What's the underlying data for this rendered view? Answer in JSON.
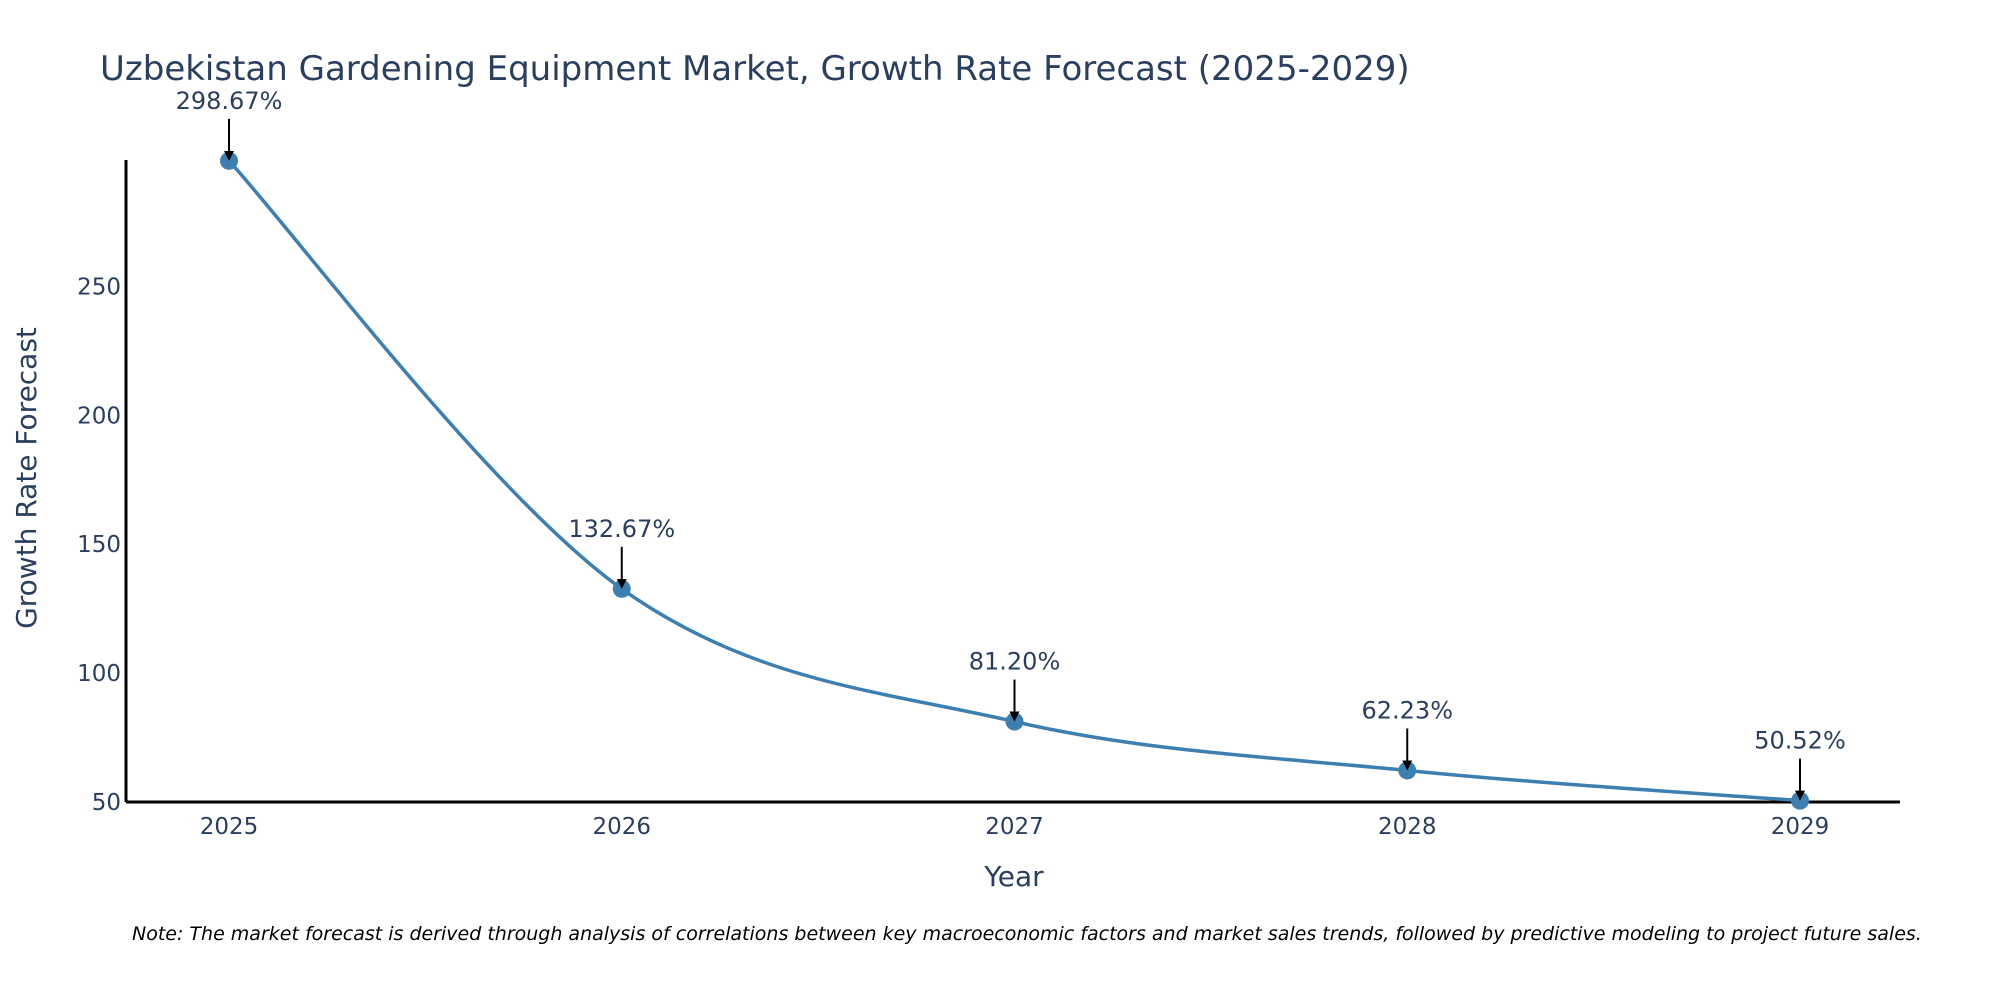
{
  "chart_data": {
    "type": "line",
    "title": "Uzbekistan Gardening Equipment Market, Growth Rate Forecast (2025-2029)",
    "xlabel": "Year",
    "ylabel": "Growth Rate Forecast",
    "categories": [
      "2025",
      "2026",
      "2027",
      "2028",
      "2029"
    ],
    "series": [
      {
        "name": "Growth Rate Forecast",
        "values": [
          298.67,
          132.67,
          81.2,
          62.23,
          50.52
        ],
        "labels": [
          "298.67%",
          "132.67%",
          "81.20%",
          "62.23%",
          "50.52%"
        ]
      }
    ],
    "ylim": [
      50,
      299
    ],
    "yticks": [
      50,
      100,
      150,
      200,
      250
    ],
    "ytick_labels": [
      "50",
      "100",
      "150",
      "200",
      "250"
    ],
    "grid": false,
    "line_color": "#3d7fb0",
    "note": "Note: The market forecast is derived through analysis of correlations between key macroeconomic factors and market sales trends, followed by predictive modeling to project future sales."
  }
}
